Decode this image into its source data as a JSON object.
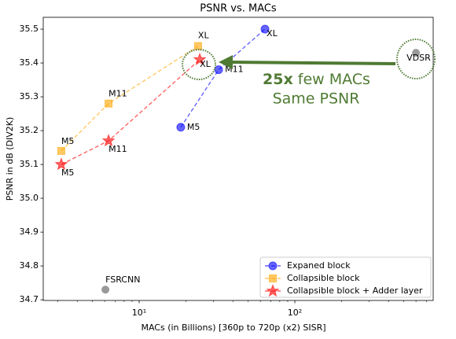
{
  "chart_data": {
    "type": "line",
    "title": "PSNR vs. MACs",
    "x_label": "MACs (in Billions) [360p to 720p (x2) SISR]",
    "y_label": "PSNR in dB (DIV2K)",
    "xscale": "log",
    "xlim": [
      2.42,
      774
    ],
    "ylim": [
      34.698,
      35.535
    ],
    "xticks": [
      {
        "value": 10,
        "label": "10¹"
      },
      {
        "value": 100,
        "label": "10²"
      }
    ],
    "xminorticks": [
      3,
      4,
      5,
      6,
      7,
      8,
      9,
      20,
      30,
      40,
      50,
      60,
      70,
      80,
      90,
      200,
      300,
      400,
      500,
      600,
      700
    ],
    "yticks": [
      34.7,
      34.8,
      34.9,
      {
        "value": 35,
        "label": "35.0"
      },
      35.1,
      35.2,
      35.3,
      35.4,
      35.5
    ],
    "legend": "lower right",
    "series": [
      {
        "name": "Expaned block",
        "color": "blue",
        "marker": "circle",
        "x": [
          18.5,
          32.4,
          64.3
        ],
        "values": [
          35.21,
          35.38,
          35.5
        ],
        "labels": [
          "M5",
          "M11",
          "XL"
        ]
      },
      {
        "name": "Collapsible block",
        "color": "orange",
        "marker": "square",
        "x": [
          3.16,
          6.36,
          23.9
        ],
        "values": [
          35.14,
          35.28,
          35.45
        ],
        "labels": [
          "M5",
          "M11",
          "XL"
        ]
      },
      {
        "name": "Collapsible block + Adder layer",
        "color": "red",
        "marker": "star",
        "x": [
          3.16,
          6.36,
          24.5
        ],
        "values": [
          35.1,
          35.17,
          35.41
        ],
        "labels": [
          "M5",
          "M11",
          "XL"
        ]
      }
    ],
    "reference_points": [
      {
        "label": "VDSR",
        "x": 600,
        "value": 35.43,
        "color": "gray"
      },
      {
        "label": "FSRCNN",
        "x": 6.07,
        "value": 34.73,
        "color": "gray"
      }
    ],
    "annotation": {
      "emphasis": "25x",
      "text": "few MACs",
      "line2": "Same PSNR"
    }
  }
}
